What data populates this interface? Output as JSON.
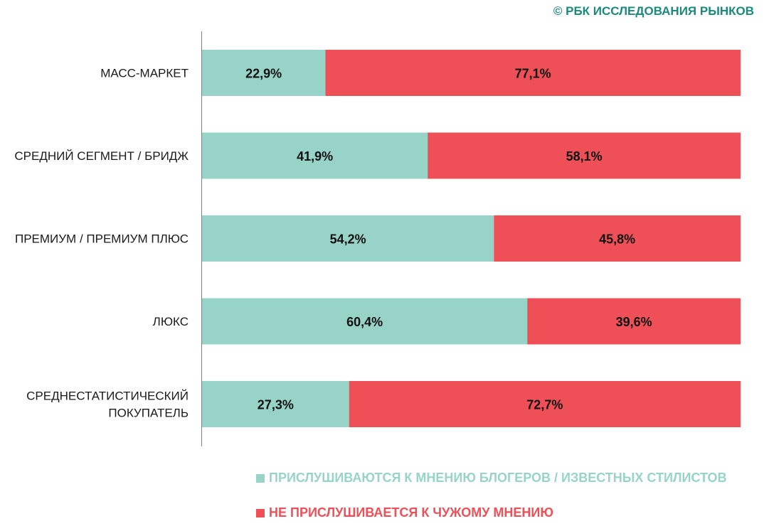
{
  "copyright": "© РБК ИССЛЕДОВАНИЯ РЫНКОВ",
  "colors": {
    "series1": "#98d3c8",
    "series2": "#ef5058",
    "legend1_text": "#98d3c8",
    "legend2_text": "#ef5058",
    "copyright": "#1a8a7d"
  },
  "chart_data": {
    "type": "bar",
    "orientation": "horizontal",
    "stacked": "percent",
    "categories": [
      [
        "МАСС-МАРКЕТ"
      ],
      [
        "СРЕДНИЙ СЕГМЕНТ / БРИДЖ"
      ],
      [
        "ПРЕМИУМ / ПРЕМИУМ ПЛЮС"
      ],
      [
        "ЛЮКС"
      ],
      [
        "СРЕДНЕСТАТИСТИЧЕСКИЙ",
        "ПОКУПАТЕЛЬ"
      ]
    ],
    "series": [
      {
        "name": "ПРИСЛУШИВАЮТСЯ К МНЕНИЮ БЛОГЕРОВ / ИЗВЕСТНЫХ СТИЛИСТОВ",
        "values": [
          22.9,
          41.9,
          54.2,
          60.4,
          27.3
        ],
        "labels": [
          "22,9%",
          "41,9%",
          "54,2%",
          "60,4%",
          "27,3%"
        ]
      },
      {
        "name": "НЕ ПРИСЛУШИВАЕТСЯ К ЧУЖОМУ МНЕНИЮ",
        "values": [
          77.1,
          58.1,
          45.8,
          39.6,
          72.7
        ],
        "labels": [
          "77,1%",
          "58,1%",
          "45,8%",
          "39,6%",
          "72,7%"
        ]
      }
    ],
    "xlim": [
      0,
      100
    ],
    "grid": false,
    "legend_position": "bottom"
  }
}
